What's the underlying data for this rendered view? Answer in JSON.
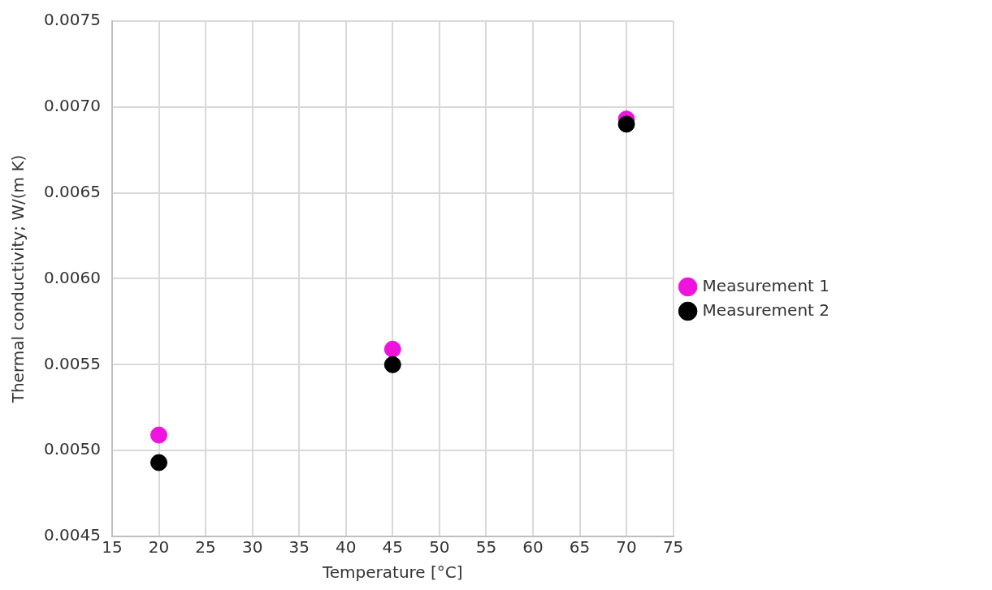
{
  "chart_data": {
    "type": "scatter",
    "xlabel": "Temperature [°C]",
    "ylabel": "Thermal conductivity; W/(m K)",
    "xlim": [
      15,
      75
    ],
    "xticks": [
      15,
      20,
      25,
      30,
      35,
      40,
      45,
      50,
      55,
      60,
      65,
      70,
      75
    ],
    "ylim": [
      0.0045,
      0.0075
    ],
    "yticks": [
      {
        "value": 0.0045,
        "label": "0.0045"
      },
      {
        "value": 0.005,
        "label": "0.0050"
      },
      {
        "value": 0.0055,
        "label": "0.0055"
      },
      {
        "value": 0.006,
        "label": "0.0060"
      },
      {
        "value": 0.0065,
        "label": "0.0065"
      },
      {
        "value": 0.007,
        "label": "0.0070"
      },
      {
        "value": 0.0075,
        "label": "0.0075"
      }
    ],
    "x": [
      20,
      45,
      70
    ],
    "series": [
      {
        "name": "Measurement 1",
        "color": "#ee14de",
        "values": [
          0.00509,
          0.00559,
          0.00693
        ]
      },
      {
        "name": "Measurement 2",
        "color": "#000000",
        "values": [
          0.00493,
          0.0055,
          0.0069
        ]
      }
    ],
    "grid": true,
    "legend": "right",
    "marker": "circle"
  }
}
